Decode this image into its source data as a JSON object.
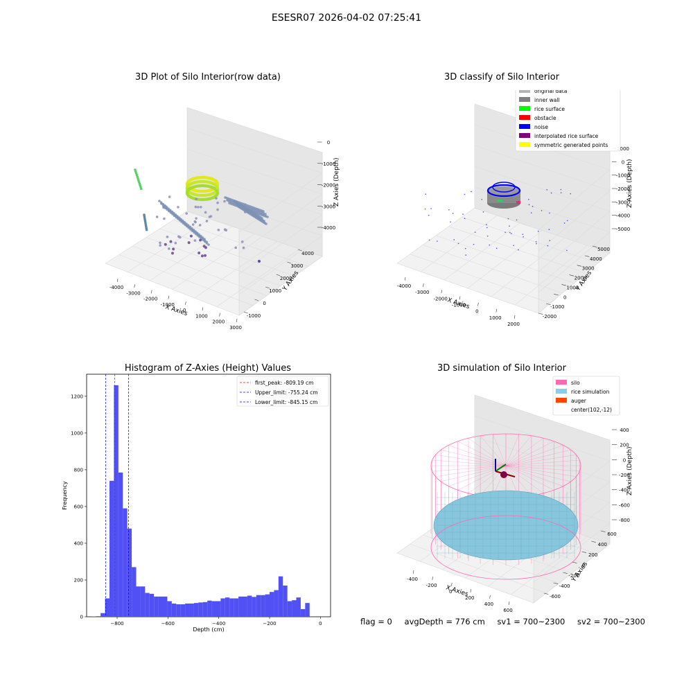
{
  "figure_title": "ESESR07 2026-04-02 07:25:41",
  "footer": {
    "flag": "flag = 0",
    "avg_depth": "avgDepth = 776 cm",
    "sv1": "sv1 = 700~2300",
    "sv2": "sv2 = 700~2300"
  },
  "chart_data": [
    {
      "type": "scatter",
      "title": "3D Plot of Silo Interior(row data)",
      "xlabel": "X Axies",
      "ylabel": "Y Axies",
      "zlabel": "Z Axies (Depth)",
      "xticks": [
        "-4000",
        "-3000",
        "-2000",
        "-1000",
        "0",
        "1000",
        "2000",
        "3000"
      ],
      "yticks": [
        "-1000",
        "0",
        "1000",
        "2000",
        "3000",
        "4000"
      ],
      "zticks": [
        "0",
        "-1000",
        "-2000",
        "-3000",
        "-4000"
      ]
    },
    {
      "type": "scatter",
      "title": "3D classify of Silo Interior",
      "xlabel": "X Axies",
      "ylabel": "Y Axies",
      "zlabel": "Z Axies (Depth)",
      "xticks": [
        "-4000",
        "-3000",
        "-2000",
        "-1000",
        "0",
        "1000",
        "2000"
      ],
      "yticks": [
        "-2000",
        "-1000",
        "0",
        "1000",
        "2000",
        "3000",
        "4000",
        "5000"
      ],
      "zticks": [
        "1000",
        "0",
        "-1000",
        "-2000",
        "-3000",
        "-4000",
        "-5000"
      ],
      "legend": [
        {
          "label": "original data",
          "color": "#b4b4b4"
        },
        {
          "label": "inner wall",
          "color": "#808080"
        },
        {
          "label": "rice surface",
          "color": "#00ff00"
        },
        {
          "label": "obstacle",
          "color": "#ff0000"
        },
        {
          "label": "noise",
          "color": "#0000ff"
        },
        {
          "label": "interpolated rice surface",
          "color": "#800080"
        },
        {
          "label": "symmetric generated points",
          "color": "#ffff00"
        }
      ]
    },
    {
      "type": "bar",
      "title": "Histogram of Z-Axies (Height) Values",
      "xlabel": "Depth (cm)",
      "ylabel": "Frequency",
      "xlim": [
        -920,
        40
      ],
      "ylim": [
        0,
        1320
      ],
      "xticks": [
        -800,
        -600,
        -400,
        -200,
        0
      ],
      "yticks": [
        0,
        200,
        400,
        600,
        800,
        1000,
        1200
      ],
      "bin_width": 17.5,
      "bin_start": -900,
      "bar_color": "#5050f5",
      "values": [
        2,
        3,
        20,
        100,
        740,
        1260,
        785,
        590,
        480,
        270,
        165,
        165,
        130,
        125,
        110,
        110,
        110,
        85,
        72,
        68,
        68,
        72,
        72,
        75,
        78,
        80,
        88,
        85,
        85,
        100,
        105,
        100,
        100,
        110,
        110,
        115,
        108,
        118,
        118,
        122,
        135,
        145,
        220,
        170,
        85,
        90,
        105,
        42,
        75
      ],
      "vlines": [
        {
          "label": "first_peak: -809.19 cm",
          "x": -809.19,
          "color": "#ff0000"
        },
        {
          "label": "Upper_limit: -755.24 cm",
          "x": -755.24,
          "color": "#0000ff"
        },
        {
          "label": "Lower_limit: -845.15 cm",
          "x": -845.15,
          "color": "#0000ff"
        }
      ]
    },
    {
      "type": "scatter",
      "title": "3D simulation of Silo Interior",
      "xlabel": "X Axies",
      "ylabel": "Y Axies",
      "zlabel": "Z Axies (Depth)",
      "xticks": [
        "-400",
        "-200",
        "0",
        "200",
        "400",
        "600"
      ],
      "yticks": [
        "-600",
        "-400",
        "-200",
        "0",
        "200",
        "400",
        "600"
      ],
      "zticks": [
        "400",
        "200",
        "0",
        "-200",
        "-400",
        "-600",
        "-800"
      ],
      "legend": [
        {
          "label": "silo",
          "color": "#ff69b4"
        },
        {
          "label": "rice simulation",
          "color": "#87ceeb"
        },
        {
          "label": "auger",
          "color": "#ff4500"
        },
        {
          "label": "center(102,-12)",
          "color": ""
        }
      ]
    }
  ]
}
